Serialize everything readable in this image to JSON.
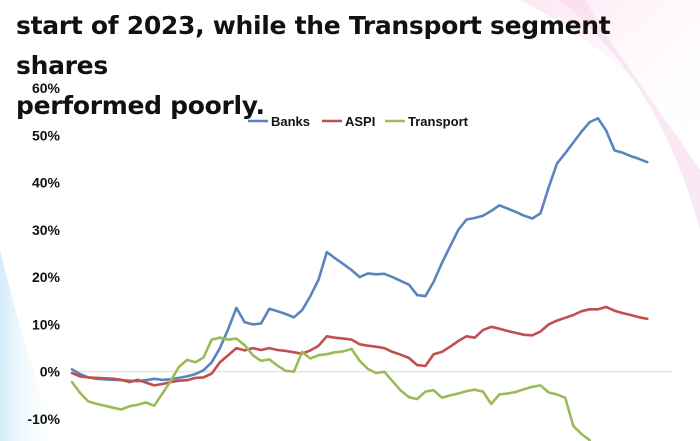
{
  "headline_lines": [
    "start of 2023, while the Transport segment shares",
    "performed poorly."
  ],
  "chart_data": {
    "type": "line",
    "title": "",
    "xlabel": "",
    "ylabel": "",
    "ylim": [
      -10,
      60
    ],
    "yticks": [
      {
        "value": 60,
        "label": "60%"
      },
      {
        "value": 50,
        "label": "50%"
      },
      {
        "value": 40,
        "label": "40%"
      },
      {
        "value": 30,
        "label": "30%"
      },
      {
        "value": 20,
        "label": "20%"
      },
      {
        "value": 10,
        "label": "10%"
      },
      {
        "value": 0,
        "label": "0%"
      },
      {
        "value": -10,
        "label": "-10%"
      }
    ],
    "legend_position": "top-center",
    "grid": false,
    "series": [
      {
        "name": "Banks",
        "color": "#5b84bf",
        "x": [
          0,
          1,
          2,
          3,
          4,
          5,
          6,
          7,
          8,
          9,
          10,
          11,
          12,
          13,
          14,
          15,
          16,
          17,
          18,
          19,
          20,
          21,
          22,
          23,
          24,
          25,
          26,
          27,
          28,
          29,
          30,
          31,
          32,
          33,
          34,
          35,
          36,
          37,
          38,
          39,
          40,
          41,
          42,
          43,
          44,
          45,
          46,
          47,
          48,
          49,
          50,
          51,
          52,
          53,
          54,
          55,
          56,
          57,
          58,
          59,
          60,
          61,
          62,
          63,
          64,
          65,
          66,
          67,
          68,
          69,
          70,
          71,
          72,
          73
        ],
        "values": [
          0.5,
          -0.5,
          -1.2,
          -1.5,
          -1.6,
          -1.7,
          -1.8,
          -1.9,
          -2,
          -1.8,
          -1.5,
          -1.7,
          -1.6,
          -1.3,
          -1,
          -0.5,
          0.3,
          2,
          5,
          9,
          13.5,
          10.5,
          10,
          10.2,
          13.3,
          12.8,
          12.2,
          11.5,
          13,
          16,
          19.5,
          25.3,
          24,
          22.8,
          21.5,
          20,
          20.8,
          20.6,
          20.7,
          20,
          19.2,
          18.4,
          16.2,
          16,
          19,
          23,
          26.5,
          30,
          32.2,
          32.5,
          33,
          34,
          35.2,
          34.5,
          33.8,
          33,
          32.4,
          33.5,
          39,
          44,
          46.2,
          48.5,
          50.8,
          52.8,
          53.6,
          51,
          46.8,
          46.3,
          45.6,
          45,
          44.3,
          null,
          null,
          null
        ]
      },
      {
        "name": "ASPI",
        "color": "#c0504d",
        "x": [
          0,
          1,
          2,
          3,
          4,
          5,
          6,
          7,
          8,
          9,
          10,
          11,
          12,
          13,
          14,
          15,
          16,
          17,
          18,
          19,
          20,
          21,
          22,
          23,
          24,
          25,
          26,
          27,
          28,
          29,
          30,
          31,
          32,
          33,
          34,
          35,
          36,
          37,
          38,
          39,
          40,
          41,
          42,
          43,
          44,
          45,
          46,
          47,
          48,
          49,
          50,
          51,
          52,
          53,
          54,
          55,
          56,
          57,
          58,
          59,
          60,
          61,
          62,
          63,
          64,
          65,
          66,
          67,
          68,
          69,
          70,
          71,
          72,
          73
        ],
        "values": [
          -0.3,
          -1,
          -1.2,
          -1.3,
          -1.4,
          -1.5,
          -1.7,
          -2.2,
          -1.7,
          -2.3,
          -2.9,
          -2.6,
          -2.2,
          -1.9,
          -1.8,
          -1.3,
          -1.2,
          -0.4,
          2,
          3.5,
          5,
          4.5,
          5,
          4.6,
          5,
          4.6,
          4.4,
          4.1,
          3.8,
          4.5,
          5.5,
          7.5,
          7.2,
          7,
          6.8,
          5.8,
          5.5,
          5.3,
          5,
          4.2,
          3.6,
          2.9,
          1.4,
          1.2,
          3.7,
          4.2,
          5.3,
          6.5,
          7.5,
          7.2,
          8.8,
          9.5,
          9.1,
          8.6,
          8.2,
          7.8,
          7.7,
          8.5,
          10,
          10.8,
          11.4,
          12,
          12.8,
          13.2,
          13.2,
          13.7,
          12.9,
          12.4,
          12,
          11.5,
          11.2,
          null,
          null,
          null
        ]
      },
      {
        "name": "Transport",
        "color": "#9bbb59",
        "x": [
          0,
          1,
          2,
          3,
          4,
          5,
          6,
          7,
          8,
          9,
          10,
          11,
          12,
          13,
          14,
          15,
          16,
          17,
          18,
          19,
          20,
          21,
          22,
          23,
          24,
          25,
          26,
          27,
          28,
          29,
          30,
          31,
          32,
          33,
          34,
          35,
          36,
          37,
          38,
          39,
          40,
          41,
          42,
          43,
          44,
          45,
          46,
          47,
          48,
          49,
          50,
          51,
          52,
          53,
          54,
          55,
          56,
          57,
          58,
          59,
          60,
          61,
          62,
          63,
          64,
          65,
          66,
          67,
          68,
          69,
          70,
          71,
          72,
          73
        ],
        "values": [
          -2.2,
          -4.5,
          -6.3,
          -6.8,
          -7.2,
          -7.6,
          -8,
          -7.3,
          -7,
          -6.5,
          -7.2,
          -4.6,
          -2,
          1,
          2.5,
          2,
          3,
          6.8,
          7.2,
          6.8,
          7,
          5.6,
          3.5,
          2.3,
          2.6,
          1.3,
          0.2,
          0,
          4.2,
          2.8,
          3.5,
          3.7,
          4.1,
          4.3,
          4.8,
          2.3,
          0.6,
          -0.3,
          0,
          -2,
          -4,
          -5.4,
          -5.8,
          -4.2,
          -3.9,
          -5.5,
          -5,
          -4.6,
          -4.1,
          -3.8,
          -4.2,
          -6.8,
          -4.8,
          -4.6,
          -4.3,
          -3.7,
          -3.2,
          -2.9,
          -4.4,
          -4.8,
          -5.5,
          -11.5,
          -13.2,
          -14.5,
          null,
          null,
          null,
          null,
          null,
          null,
          null,
          null,
          null,
          null
        ]
      }
    ]
  }
}
